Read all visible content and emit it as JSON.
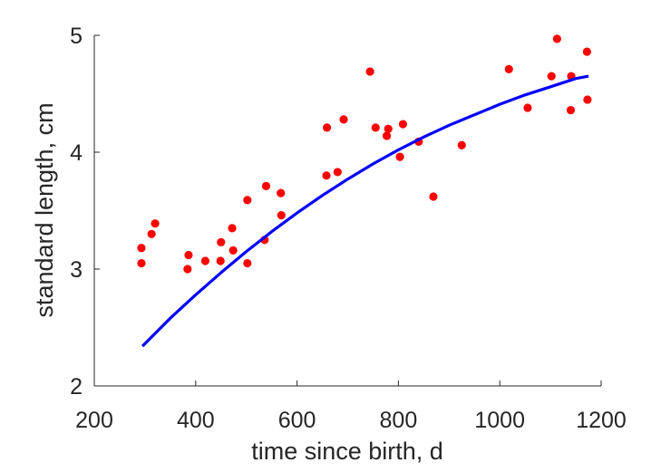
{
  "chart_data": {
    "type": "scatter",
    "xlabel": "time since birth, d",
    "ylabel": "standard length, cm",
    "xlim": [
      200,
      1200
    ],
    "ylim": [
      2,
      5
    ],
    "xticks": [
      "200",
      "400",
      "600",
      "800",
      "1000",
      "1200"
    ],
    "yticks": [
      "2",
      "3",
      "4",
      "5"
    ],
    "grid": false,
    "colors": {
      "points": "#ff0000",
      "curve": "#0000ff",
      "axis": "#262626"
    },
    "series": [
      {
        "type": "scatter",
        "points": [
          [
            293,
            3.05
          ],
          [
            293,
            3.18
          ],
          [
            313,
            3.3
          ],
          [
            320,
            3.39
          ],
          [
            384,
            3.0
          ],
          [
            386,
            3.12
          ],
          [
            419,
            3.07
          ],
          [
            449,
            3.07
          ],
          [
            450,
            3.23
          ],
          [
            472,
            3.35
          ],
          [
            474,
            3.16
          ],
          [
            502,
            3.05
          ],
          [
            502,
            3.59
          ],
          [
            536,
            3.25
          ],
          [
            539,
            3.71
          ],
          [
            568,
            3.65
          ],
          [
            569,
            3.46
          ],
          [
            658,
            3.8
          ],
          [
            659,
            4.21
          ],
          [
            680,
            3.83
          ],
          [
            692,
            4.28
          ],
          [
            744,
            4.69
          ],
          [
            755,
            4.21
          ],
          [
            777,
            4.14
          ],
          [
            780,
            4.2
          ],
          [
            803,
            3.96
          ],
          [
            809,
            4.24
          ],
          [
            840,
            4.09
          ],
          [
            869,
            3.62
          ],
          [
            925,
            4.06
          ],
          [
            1018,
            4.71
          ],
          [
            1055,
            4.38
          ],
          [
            1102,
            4.65
          ],
          [
            1113,
            4.97
          ],
          [
            1140,
            4.36
          ],
          [
            1141,
            4.65
          ],
          [
            1172,
            4.86
          ],
          [
            1173,
            4.45
          ]
        ]
      },
      {
        "type": "line",
        "x": [
          295,
          350,
          400,
          450,
          500,
          550,
          600,
          650,
          700,
          750,
          800,
          850,
          900,
          950,
          1000,
          1050,
          1100,
          1150,
          1175
        ],
        "y": [
          2.34,
          2.58,
          2.78,
          2.97,
          3.15,
          3.32,
          3.48,
          3.63,
          3.77,
          3.9,
          4.02,
          4.13,
          4.23,
          4.32,
          4.41,
          4.49,
          4.56,
          4.63,
          4.65
        ]
      }
    ]
  }
}
